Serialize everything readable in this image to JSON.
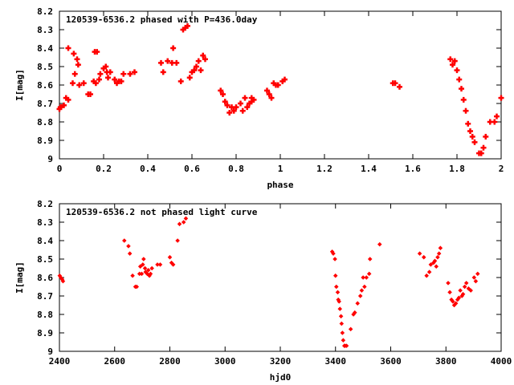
{
  "chart_data": [
    {
      "type": "scatter",
      "title": "120539-6536.2 phased with P=436.0day",
      "xlabel": "phase",
      "ylabel": "I[mag]",
      "xlim": [
        0,
        2
      ],
      "ylim": [
        9,
        8.2
      ],
      "y_inverted": true,
      "xticks": [
        "0",
        "0.2",
        "0.4",
        "0.6",
        "0.8",
        "1",
        "1.2",
        "1.4",
        "1.6",
        "1.8",
        "2"
      ],
      "yticks": [
        "8.2",
        "8.3",
        "8.4",
        "8.5",
        "8.6",
        "8.7",
        "8.8",
        "8.9",
        "9"
      ],
      "marker": "plus",
      "color": "#ff0000",
      "grid": false,
      "series": [
        {
          "x": [
            0.0,
            0.005,
            0.02,
            0.03,
            0.04,
            0.04,
            0.06,
            0.065,
            0.07,
            0.08,
            0.085,
            0.09,
            0.11,
            0.13,
            0.14,
            0.155,
            0.16,
            0.165,
            0.17,
            0.18,
            0.185,
            0.2,
            0.21,
            0.215,
            0.22,
            0.23,
            0.25,
            0.26,
            0.27,
            0.28,
            0.29,
            0.32,
            0.34,
            0.46,
            0.47,
            0.49,
            0.51,
            0.515,
            0.53,
            0.55,
            0.56,
            0.57,
            0.58,
            0.59,
            0.6,
            0.61,
            0.62,
            0.63,
            0.64,
            0.65,
            0.66,
            0.73,
            0.74,
            0.75,
            0.76,
            0.77,
            0.78,
            0.79,
            0.8,
            0.82,
            0.83,
            0.84,
            0.85,
            0.86,
            0.87,
            0.87,
            0.88,
            0.94,
            0.95,
            0.96,
            0.97,
            0.98,
            0.99,
            1.01,
            1.02,
            1.51,
            1.52,
            1.54,
            1.77,
            1.78,
            1.79,
            1.8,
            1.81,
            1.82,
            1.83,
            1.84,
            1.85,
            1.86,
            1.87,
            1.88,
            1.9,
            1.91,
            1.92,
            1.93,
            1.95,
            1.97,
            1.98,
            2.0
          ],
          "y": [
            8.73,
            8.72,
            8.71,
            8.67,
            8.4,
            8.68,
            8.59,
            8.43,
            8.54,
            8.46,
            8.49,
            8.6,
            8.59,
            8.65,
            8.65,
            8.58,
            8.42,
            8.59,
            8.42,
            8.57,
            8.54,
            8.51,
            8.5,
            8.53,
            8.56,
            8.53,
            8.57,
            8.59,
            8.58,
            8.58,
            8.54,
            8.54,
            8.53,
            8.48,
            8.53,
            8.47,
            8.48,
            8.4,
            8.48,
            8.58,
            8.3,
            8.29,
            8.28,
            8.56,
            8.53,
            8.52,
            8.5,
            8.47,
            8.52,
            8.44,
            8.46,
            8.63,
            8.65,
            8.69,
            8.71,
            8.75,
            8.72,
            8.74,
            8.72,
            8.7,
            8.74,
            8.67,
            8.72,
            8.7,
            8.69,
            8.67,
            8.68,
            8.63,
            8.65,
            8.67,
            8.59,
            8.6,
            8.6,
            8.58,
            8.57,
            8.59,
            8.59,
            8.61,
            8.46,
            8.49,
            8.47,
            8.52,
            8.57,
            8.62,
            8.68,
            8.74,
            8.81,
            8.85,
            8.88,
            8.91,
            8.97,
            8.97,
            8.94,
            8.88,
            8.8,
            8.8,
            8.77,
            8.67
          ]
        }
      ]
    },
    {
      "type": "scatter",
      "title": "120539-6536.2 not phased light curve",
      "xlabel": "hjd0",
      "ylabel": "I[mag]",
      "xlim": [
        2400,
        4000
      ],
      "ylim": [
        9,
        8.2
      ],
      "y_inverted": true,
      "xticks": [
        "2400",
        "2600",
        "2800",
        "3000",
        "3200",
        "3400",
        "3600",
        "3800",
        "4000"
      ],
      "yticks": [
        "8.2",
        "8.3",
        "8.4",
        "8.5",
        "8.6",
        "8.7",
        "8.8",
        "8.9",
        "9"
      ],
      "marker": "diamond",
      "color": "#ff0000",
      "grid": false,
      "series": [
        {
          "x": [
            2401,
            2405,
            2410,
            2413,
            2635,
            2650,
            2655,
            2665,
            2675,
            2680,
            2690,
            2693,
            2698,
            2702,
            2705,
            2710,
            2712,
            2718,
            2722,
            2726,
            2730,
            2735,
            2755,
            2765,
            2800,
            2806,
            2812,
            2828,
            2835,
            2850,
            2858,
            3388,
            3392,
            3398,
            3400,
            3403,
            3408,
            3410,
            3413,
            3416,
            3420,
            3422,
            3425,
            3428,
            3432,
            3435,
            3440,
            3455,
            3465,
            3470,
            3480,
            3490,
            3495,
            3500,
            3505,
            3512,
            3522,
            3525,
            3560,
            3705,
            3720,
            3730,
            3740,
            3745,
            3755,
            3760,
            3765,
            3770,
            3775,
            3780,
            3808,
            3814,
            3820,
            3825,
            3830,
            3836,
            3842,
            3847,
            3852,
            3858,
            3862,
            3868,
            3874,
            3882,
            3890,
            3902,
            3908,
            3915
          ],
          "y": [
            8.59,
            8.6,
            8.61,
            8.62,
            8.4,
            8.43,
            8.47,
            8.59,
            8.65,
            8.65,
            8.58,
            8.54,
            8.58,
            8.53,
            8.5,
            8.55,
            8.57,
            8.58,
            8.56,
            8.59,
            8.58,
            8.55,
            8.53,
            8.53,
            8.49,
            8.52,
            8.53,
            8.4,
            8.31,
            8.3,
            8.28,
            8.46,
            8.47,
            8.5,
            8.59,
            8.65,
            8.68,
            8.72,
            8.73,
            8.77,
            8.81,
            8.85,
            8.9,
            8.94,
            8.97,
            8.97,
            8.97,
            8.88,
            8.8,
            8.79,
            8.74,
            8.7,
            8.67,
            8.6,
            8.65,
            8.6,
            8.58,
            8.5,
            8.42,
            8.47,
            8.49,
            8.59,
            8.57,
            8.53,
            8.52,
            8.51,
            8.54,
            8.49,
            8.47,
            8.44,
            8.63,
            8.68,
            8.72,
            8.73,
            8.75,
            8.74,
            8.72,
            8.71,
            8.67,
            8.7,
            8.69,
            8.65,
            8.63,
            8.66,
            8.67,
            8.6,
            8.62,
            8.58
          ]
        }
      ]
    }
  ]
}
